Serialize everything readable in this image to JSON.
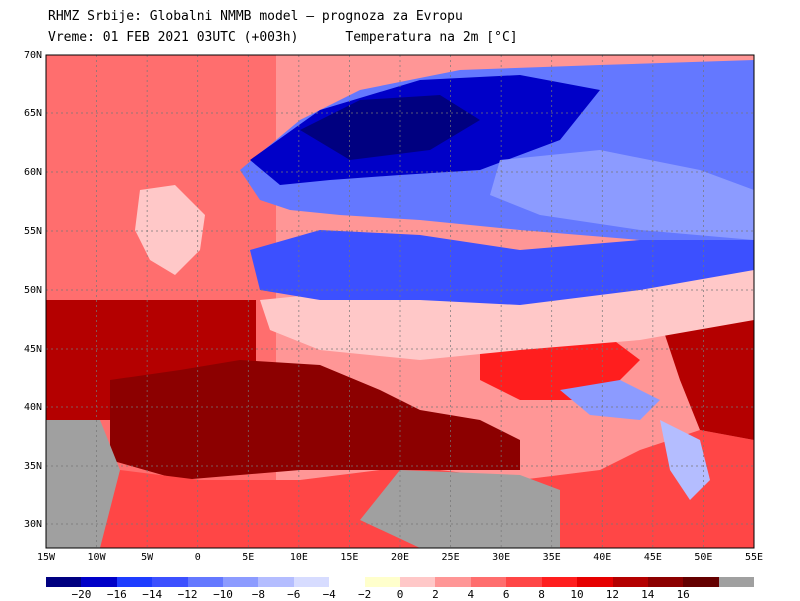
{
  "header": {
    "line1": "RHMZ Srbije: Globalni NMMB model — prognoza za Evropu",
    "line2": "Vreme: 01 FEB 2021 03UTC (+003h)      Temperatura na 2m [°C]"
  },
  "map": {
    "lat_labels": [
      "70N",
      "65N",
      "60N",
      "55N",
      "50N",
      "45N",
      "40N",
      "35N",
      "30N"
    ],
    "lon_labels": [
      "15W",
      "10W",
      "5W",
      "0",
      "5E",
      "10E",
      "15E",
      "20E",
      "25E",
      "30E",
      "35E",
      "40E",
      "45E",
      "50E",
      "55E"
    ]
  },
  "legend": {
    "colors": [
      "#000080",
      "#0000c8",
      "#1e3cff",
      "#3c50ff",
      "#6478ff",
      "#8c9bff",
      "#b4bdff",
      "#d7dcff",
      "#ffffff",
      "#ffffcc",
      "#ffc8c8",
      "#ff9696",
      "#ff6e6e",
      "#ff4646",
      "#ff1e1e",
      "#e60000",
      "#b40000",
      "#8c0000",
      "#640000",
      "#a0a0a0"
    ],
    "labels": [
      "−20",
      "−16",
      "−14",
      "−12",
      "−10",
      "−8",
      "−6",
      "−4",
      "−2",
      "0",
      "2",
      "4",
      "6",
      "8",
      "10",
      "12",
      "14",
      "16"
    ],
    "colors_meaning": "temperature classes from cold (blue) to warm (red), grey = terrain"
  }
}
